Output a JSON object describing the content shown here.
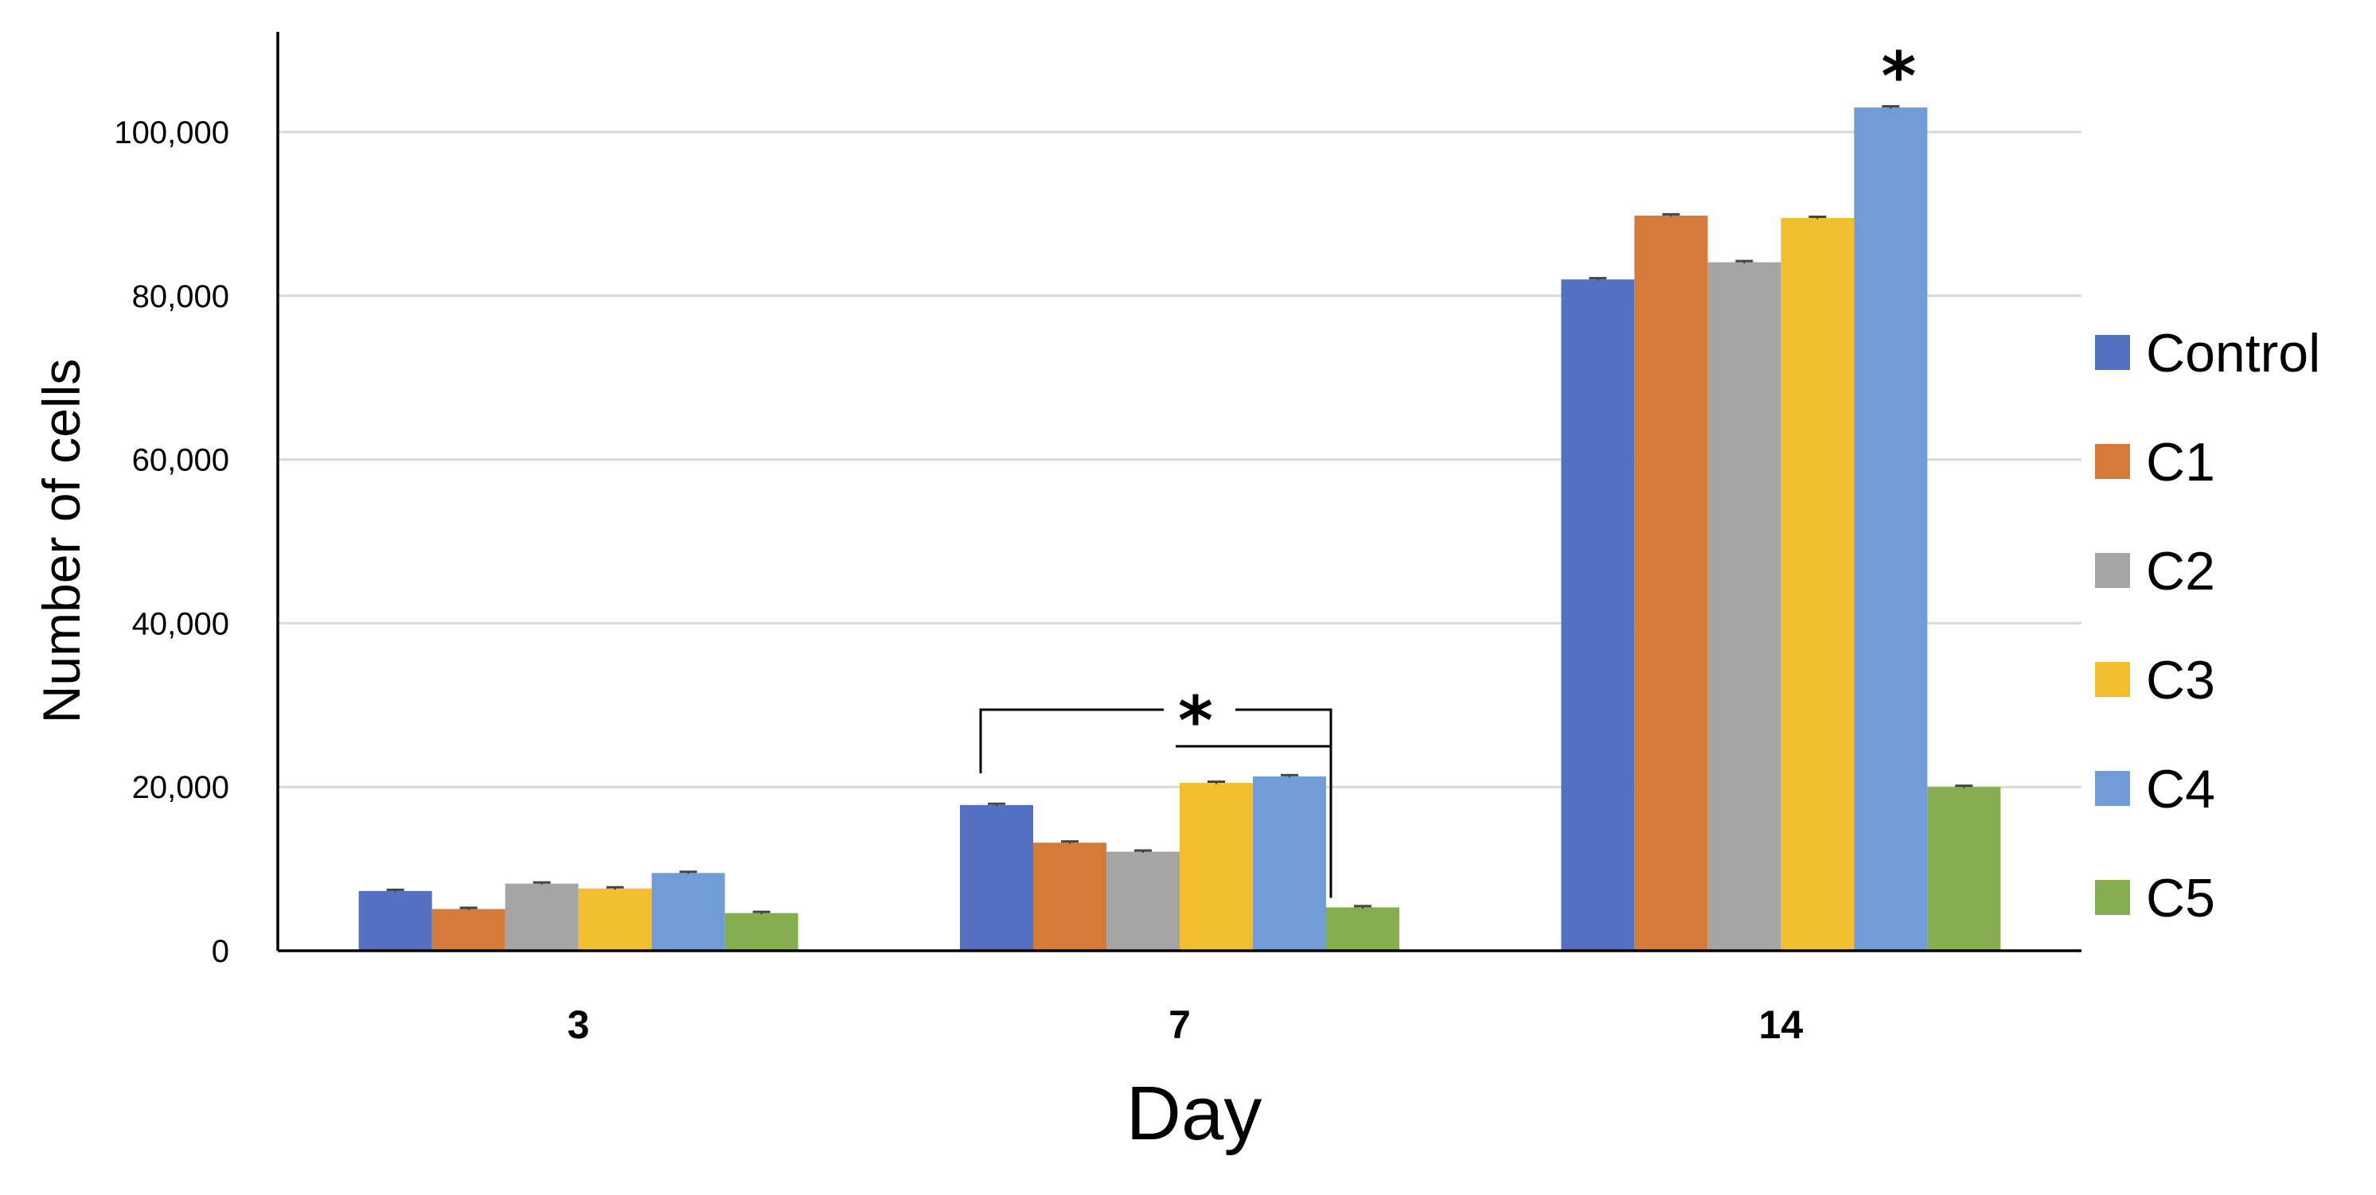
{
  "chart_data": {
    "type": "bar",
    "categories": [
      "3",
      "7",
      "14"
    ],
    "xlabel": "Day",
    "ylabel": "Number of cells",
    "ylim": [
      0,
      110000
    ],
    "yticks": [
      0,
      20000,
      40000,
      60000,
      80000,
      100000
    ],
    "ytick_labels": [
      "0",
      "20,000",
      "40,000",
      "60,000",
      "80,000",
      "100,000"
    ],
    "grid": "horizontal",
    "legend": "right",
    "series": [
      {
        "name": "Control",
        "color": "#5470C1",
        "values": [
          7300,
          17800,
          82000
        ],
        "errors": [
          150,
          150,
          150
        ]
      },
      {
        "name": "C1",
        "color": "#D57B39",
        "values": [
          5100,
          13200,
          89800
        ],
        "errors": [
          150,
          150,
          150
        ]
      },
      {
        "name": "C2",
        "color": "#A5A5A5",
        "values": [
          8200,
          12100,
          84100
        ],
        "errors": [
          150,
          150,
          150
        ]
      },
      {
        "name": "C3",
        "color": "#F0BE2E",
        "values": [
          7600,
          20500,
          89500
        ],
        "errors": [
          150,
          150,
          150
        ]
      },
      {
        "name": "C4",
        "color": "#719CD5",
        "values": [
          9500,
          21300,
          103000
        ],
        "errors": [
          150,
          150,
          150
        ]
      },
      {
        "name": "C5",
        "color": "#84AE50",
        "values": [
          4600,
          5300,
          20000
        ],
        "errors": [
          150,
          150,
          150
        ]
      }
    ],
    "annotations": [
      {
        "text": "*",
        "type": "bracket",
        "category": "7",
        "from": "Control",
        "to": "C5"
      },
      {
        "text": "*",
        "type": "star",
        "category": "14",
        "series": "C4"
      }
    ]
  }
}
